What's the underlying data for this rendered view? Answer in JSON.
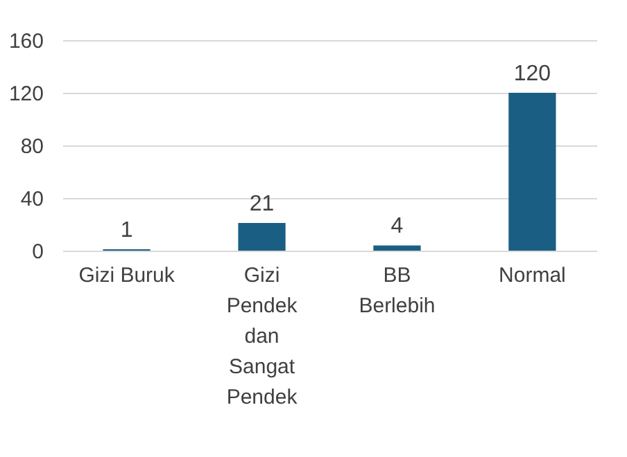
{
  "chart_data": {
    "type": "bar",
    "categories": [
      "Gizi Buruk",
      "Gizi Pendek dan Sangat Pendek",
      "BB Berlebih",
      "Normal"
    ],
    "values": [
      1,
      21,
      4,
      120
    ],
    "color": "#1b5e84",
    "ylim": [
      0,
      160
    ],
    "yticks": [
      0,
      40,
      80,
      120,
      160
    ],
    "grid": "y",
    "data_labels": true
  }
}
